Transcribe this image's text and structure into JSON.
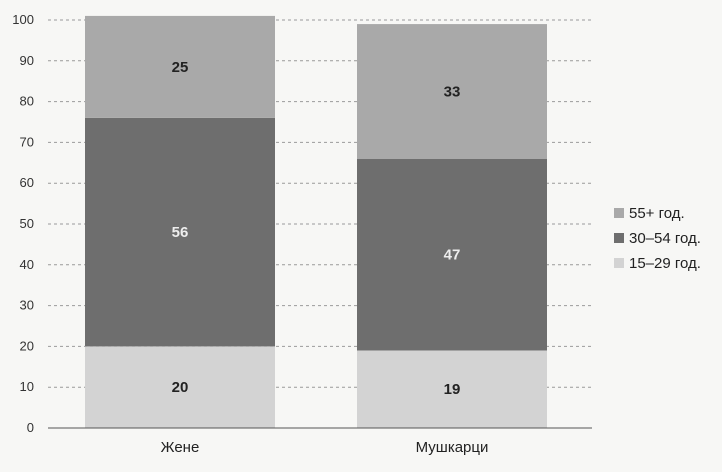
{
  "chart_data": {
    "type": "bar",
    "stacked": true,
    "categories": [
      "Жене",
      "Мушкарци"
    ],
    "series": [
      {
        "name": "15–29 год.",
        "values": [
          20,
          19
        ],
        "color": "#d3d3d3"
      },
      {
        "name": "30–54 год.",
        "values": [
          56,
          47
        ],
        "color": "#6e6e6e"
      },
      {
        "name": "55+ год.",
        "values": [
          25,
          33
        ],
        "color": "#a9a9a9"
      }
    ],
    "ylim": [
      0,
      100
    ],
    "yticks": [
      0,
      10,
      20,
      30,
      40,
      50,
      60,
      70,
      80,
      90,
      100
    ],
    "grid": true,
    "legend": "right",
    "legend_order": [
      "55+ год.",
      "30–54 год.",
      "15–29 год."
    ],
    "title": "",
    "xlabel": "",
    "ylabel": ""
  }
}
